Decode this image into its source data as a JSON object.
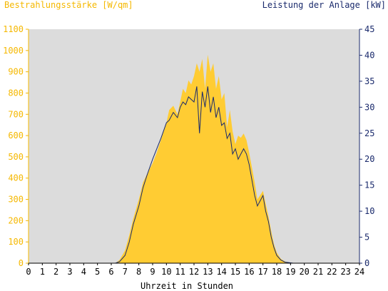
{
  "chart_data": {
    "type": "area",
    "title_left": "Bestrahlungsstärke [W/qm]",
    "title_right": "Leistung der Anlage [kW]",
    "xlabel": "Uhrzeit in Stunden",
    "x_ticks": [
      "0",
      "1",
      "2",
      "3",
      "4",
      "5",
      "6",
      "7",
      "8",
      "9",
      "10",
      "11",
      "12",
      "13",
      "14",
      "15",
      "16",
      "17",
      "18",
      "19",
      "20",
      "21",
      "22",
      "23",
      "24"
    ],
    "y_left_ticks": [
      "0",
      "100",
      "200",
      "300",
      "400",
      "500",
      "600",
      "700",
      "800",
      "900",
      "1000",
      "1100"
    ],
    "y_right_ticks": [
      "0",
      "5",
      "10",
      "15",
      "20",
      "25",
      "30",
      "35",
      "40",
      "45"
    ],
    "xlim": [
      0,
      24
    ],
    "ylim_left": [
      0,
      1100
    ],
    "ylim_right": [
      0,
      45
    ],
    "grid": false,
    "colors": {
      "plot_bg": "#dcdcdc",
      "irradiance": "#ffcc33",
      "power": "#1a2a6c",
      "left_axis": "#f5b800",
      "right_axis": "#1a2a6c"
    },
    "series": [
      {
        "name": "Bestrahlungsstärke",
        "axis": "left",
        "style": "area",
        "x": [
          0,
          6.3,
          6.6,
          7.0,
          7.3,
          7.6,
          8.0,
          8.3,
          8.6,
          9.0,
          9.3,
          9.6,
          10.0,
          10.2,
          10.5,
          10.8,
          11.0,
          11.2,
          11.4,
          11.6,
          11.8,
          12.0,
          12.2,
          12.4,
          12.6,
          12.8,
          13.0,
          13.2,
          13.4,
          13.6,
          13.8,
          14.0,
          14.2,
          14.4,
          14.6,
          14.8,
          15.0,
          15.2,
          15.4,
          15.6,
          15.8,
          16.0,
          16.2,
          16.4,
          16.6,
          16.8,
          17.0,
          17.2,
          17.4,
          17.6,
          17.8,
          18.0,
          18.3,
          18.6,
          18.9,
          19.2,
          24
        ],
        "values": [
          0,
          0,
          15,
          60,
          130,
          210,
          300,
          380,
          420,
          470,
          520,
          580,
          660,
          720,
          740,
          700,
          760,
          820,
          800,
          860,
          840,
          880,
          940,
          900,
          960,
          820,
          980,
          900,
          940,
          820,
          880,
          770,
          800,
          640,
          720,
          620,
          560,
          600,
          590,
          610,
          580,
          520,
          450,
          380,
          300,
          320,
          340,
          280,
          220,
          150,
          90,
          50,
          20,
          8,
          3,
          0,
          0
        ]
      },
      {
        "name": "Leistung der Anlage",
        "axis": "right",
        "style": "line",
        "x": [
          0,
          6.3,
          6.6,
          7.0,
          7.3,
          7.6,
          8.0,
          8.3,
          8.6,
          9.0,
          9.3,
          9.6,
          10.0,
          10.2,
          10.5,
          10.8,
          11.0,
          11.2,
          11.4,
          11.6,
          11.8,
          12.0,
          12.2,
          12.4,
          12.6,
          12.8,
          13.0,
          13.2,
          13.4,
          13.6,
          13.8,
          14.0,
          14.2,
          14.4,
          14.6,
          14.8,
          15.0,
          15.2,
          15.4,
          15.6,
          15.8,
          16.0,
          16.2,
          16.4,
          16.6,
          16.8,
          17.0,
          17.2,
          17.4,
          17.6,
          17.8,
          18.0,
          18.3,
          18.6,
          18.9,
          19.2,
          24
        ],
        "values": [
          0,
          0,
          0.3,
          1.5,
          4,
          7.5,
          11,
          14.5,
          17,
          20,
          22,
          24,
          27,
          27.5,
          29,
          28,
          30,
          31,
          30.5,
          32,
          31.5,
          31,
          34,
          25,
          33,
          30,
          34,
          29,
          32,
          28,
          30,
          26.5,
          27,
          24,
          25,
          21,
          22,
          20,
          21,
          22,
          21,
          19,
          16,
          13,
          11,
          12,
          13,
          10,
          8,
          5,
          3,
          1.5,
          0.6,
          0.2,
          0.1,
          0,
          0
        ]
      }
    ]
  }
}
